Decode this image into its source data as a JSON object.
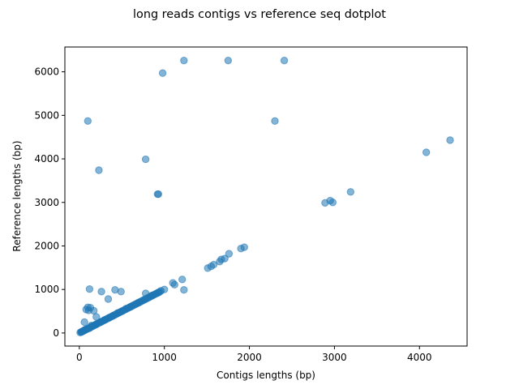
{
  "chart_data": {
    "type": "scatter",
    "title": "long reads contigs vs reference seq dotplot",
    "xlabel": "Contigs lengths (bp)",
    "ylabel": "Reference lengths (bp)",
    "xlim": [
      -170,
      4560
    ],
    "ylim": [
      -300,
      6570
    ],
    "xticks": [
      0,
      1000,
      2000,
      3000,
      4000
    ],
    "yticks": [
      0,
      1000,
      2000,
      3000,
      4000,
      5000,
      6000
    ],
    "marker_color": "#1f77b4",
    "marker_alpha": 0.55,
    "grid": false,
    "legend": "none",
    "points": [
      [
        100,
        4870
      ],
      [
        230,
        3740
      ],
      [
        780,
        3990
      ],
      [
        980,
        5970
      ],
      [
        1230,
        6260
      ],
      [
        1750,
        6260
      ],
      [
        2410,
        6260
      ],
      [
        2300,
        4870
      ],
      [
        4080,
        4150
      ],
      [
        4360,
        4430
      ],
      [
        920,
        3190
      ],
      [
        930,
        3190
      ],
      [
        2890,
        2990
      ],
      [
        2950,
        3040
      ],
      [
        2980,
        3000
      ],
      [
        3190,
        3240
      ],
      [
        1510,
        1490
      ],
      [
        1550,
        1530
      ],
      [
        1580,
        1570
      ],
      [
        1650,
        1640
      ],
      [
        1670,
        1690
      ],
      [
        1710,
        1710
      ],
      [
        1760,
        1820
      ],
      [
        1900,
        1940
      ],
      [
        1940,
        1970
      ],
      [
        120,
        1010
      ],
      [
        420,
        990
      ],
      [
        490,
        950
      ],
      [
        260,
        950
      ],
      [
        1230,
        990
      ],
      [
        1210,
        1230
      ],
      [
        1100,
        1150
      ],
      [
        1120,
        1110
      ],
      [
        80,
        540
      ],
      [
        100,
        590
      ],
      [
        130,
        580
      ],
      [
        110,
        520
      ],
      [
        170,
        510
      ],
      [
        340,
        780
      ],
      [
        60,
        250
      ],
      [
        200,
        370
      ],
      [
        140,
        170
      ],
      [
        780,
        910
      ],
      [
        960,
        970
      ],
      [
        1000,
        1000
      ],
      [
        930,
        930
      ],
      [
        850,
        860
      ],
      [
        700,
        700
      ],
      [
        600,
        600
      ],
      [
        550,
        560
      ],
      [
        500,
        500
      ],
      [
        450,
        460
      ],
      [
        400,
        400
      ],
      [
        350,
        350
      ],
      [
        300,
        300
      ],
      [
        250,
        250
      ],
      [
        200,
        200
      ],
      [
        150,
        150
      ],
      [
        100,
        100
      ],
      [
        60,
        60
      ],
      [
        40,
        40
      ],
      [
        30,
        30
      ],
      [
        20,
        20
      ],
      [
        70,
        80
      ],
      [
        120,
        110
      ],
      [
        180,
        180
      ]
    ]
  }
}
